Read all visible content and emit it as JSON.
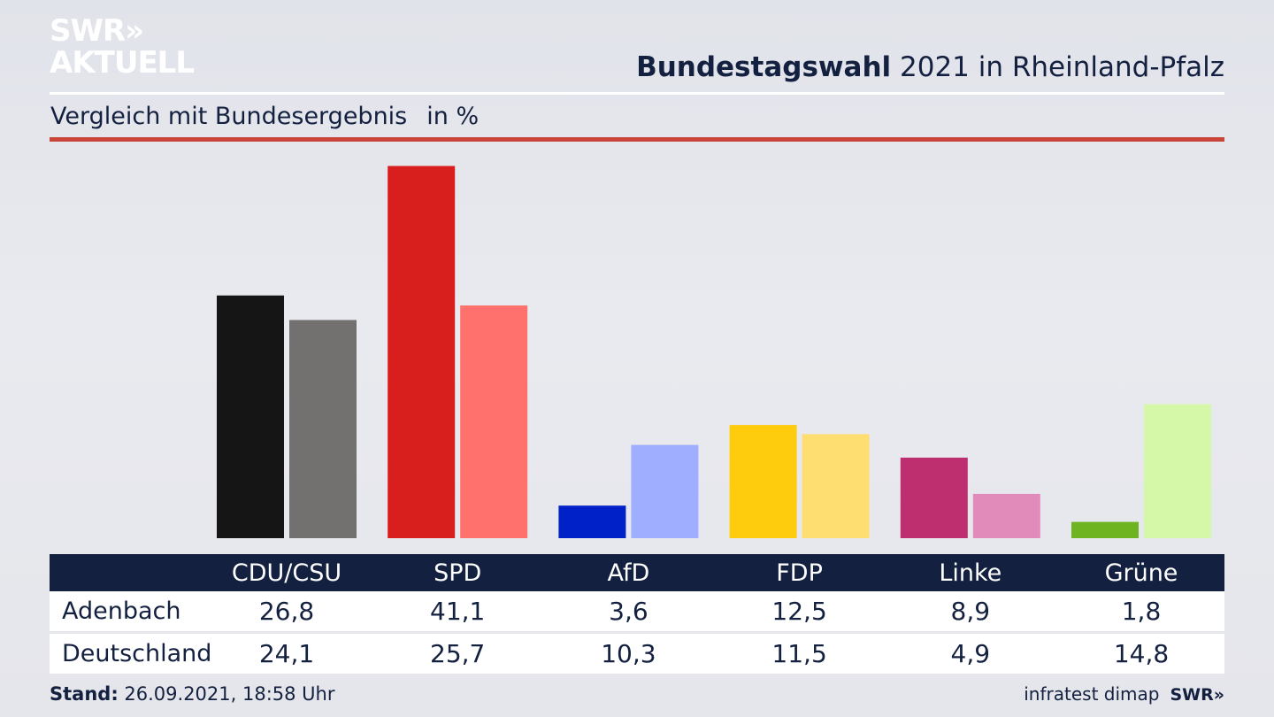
{
  "logo": {
    "line1": "SWR»",
    "line2": "AKTUELL"
  },
  "header": {
    "title_bold": "Bundestagswahl",
    "title_rest": " 2021 in Rheinland-Pfalz"
  },
  "subtitle": {
    "text": "Vergleich mit Bundesergebnis",
    "unit": "in %"
  },
  "colors": {
    "navy": "#13203f",
    "red_rule": "#c9453a"
  },
  "chart_data": {
    "type": "bar",
    "categories": [
      "CDU/CSU",
      "SPD",
      "AfD",
      "FDP",
      "Linke",
      "Grüne"
    ],
    "series": [
      {
        "name": "Adenbach",
        "values": [
          26.8,
          41.1,
          3.6,
          12.5,
          8.9,
          1.8
        ],
        "colors": [
          "#151515",
          "#d91e1e",
          "#0020c8",
          "#fecb0d",
          "#be2f70",
          "#6db420"
        ]
      },
      {
        "name": "Deutschland",
        "values": [
          24.1,
          25.7,
          10.3,
          11.5,
          4.9,
          14.8
        ],
        "colors": [
          "#73716f",
          "#fe716c",
          "#9faefe",
          "#fede71",
          "#e08bb9",
          "#d4f8a8"
        ]
      }
    ],
    "value_labels": [
      [
        "26,8",
        "41,1",
        "3,6",
        "12,5",
        "8,9",
        "1,8"
      ],
      [
        "24,1",
        "25,7",
        "10,3",
        "11,5",
        "4,9",
        "14,8"
      ]
    ],
    "ylim": [
      0,
      45
    ],
    "grid": false
  },
  "footer": {
    "stand_label": "Stand:",
    "stand_value": " 26.09.2021, 18:58 Uhr",
    "source": "infratest dimap",
    "brand": "SWR»"
  }
}
